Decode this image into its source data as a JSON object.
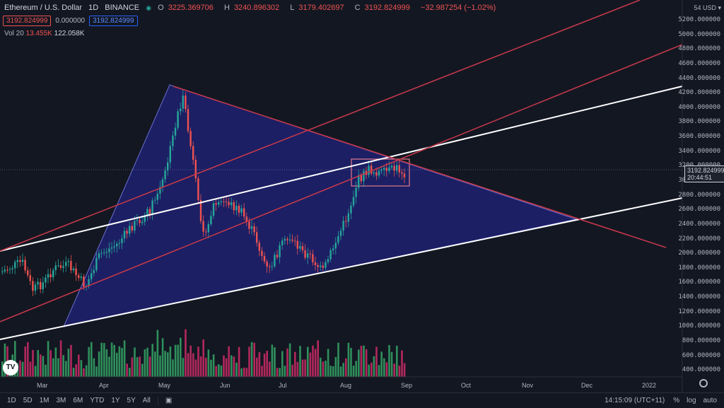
{
  "header": {
    "title": "Ethereum / U.S. Dollar",
    "interval": "1D",
    "exchange": "BINANCE",
    "live_dot": "◉",
    "open_label": "O",
    "open": "3225.369706",
    "high_label": "H",
    "high": "3240.896302",
    "low_label": "L",
    "low": "3179.402697",
    "close_label": "C",
    "close": "3192.824999",
    "change": "−32.987254 (−1.02%)"
  },
  "order_boxes": {
    "sell": "3192.824999",
    "spread": "0.000000",
    "buy": "3192.824999"
  },
  "volume": {
    "label": "Vol 20",
    "value1": "13.455K",
    "value2": "122.058K"
  },
  "price_axis": {
    "top_label": "54",
    "currency": "USD ▾",
    "ticks": [
      "5200.000000",
      "5000.000000",
      "4800.000000",
      "4600.000000",
      "4400.000000",
      "4200.000000",
      "4000.000000",
      "3800.000000",
      "3600.000000",
      "3400.000000",
      "3200.000000",
      "3000.000000",
      "2800.000000",
      "2600.000000",
      "2400.000000",
      "2200.000000",
      "2000.000000",
      "1800.000000",
      "1600.000000",
      "1400.000000",
      "1200.000000",
      "1000.000000",
      "800.000000",
      "600.000000",
      "400.000000"
    ],
    "current_price": "3192.824999",
    "countdown": "20:44:51"
  },
  "time_axis": {
    "labels": [
      "Mar",
      "Apr",
      "May",
      "Jun",
      "Jul",
      "Aug",
      "Sep",
      "Oct",
      "Nov",
      "Dec",
      "2022"
    ]
  },
  "bottom_bar": {
    "ranges": [
      "1D",
      "5D",
      "1M",
      "3M",
      "6M",
      "YTD",
      "1Y",
      "5Y",
      "All"
    ],
    "calendar_icon": "calendar-icon",
    "time": "14:15:09 (UTC+11)",
    "percent": "%",
    "log": "log",
    "auto": "auto"
  },
  "logo": {
    "text": "TV"
  },
  "colors": {
    "background": "#131722",
    "bull": "#26a69a",
    "bear": "#ef5350",
    "triangle_fill": "#1f2170",
    "trendline_white": "#ffffff",
    "trendline_red": "#c2384a"
  }
}
